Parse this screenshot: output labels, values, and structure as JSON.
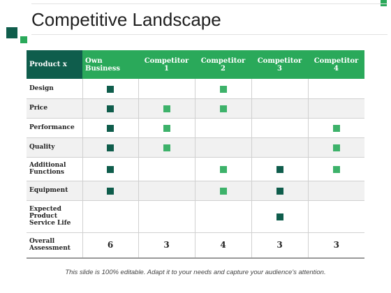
{
  "slide": {
    "title": "Competitive Landscape",
    "footer": "This slide is 100% editable. Adapt it to your needs and capture your audience's attention."
  },
  "colors": {
    "dark_green": "#0f5d4c",
    "light_green": "#2aa95a",
    "row_shade": "#f1f1f1"
  },
  "table": {
    "headers": [
      "Product x",
      "Own Business",
      "Competitor 1",
      "Competitor 2",
      "Competitor 3",
      "Competitor 4"
    ],
    "rows": [
      {
        "label": "Design",
        "marks": [
          "dark",
          "",
          "light",
          "",
          ""
        ]
      },
      {
        "label": "Price",
        "marks": [
          "dark",
          "light",
          "light",
          "",
          ""
        ]
      },
      {
        "label": "Performance",
        "marks": [
          "dark",
          "light",
          "",
          "",
          "light"
        ]
      },
      {
        "label": "Quality",
        "marks": [
          "dark",
          "light",
          "",
          "",
          "light"
        ]
      },
      {
        "label": "Additional Functions",
        "marks": [
          "dark",
          "",
          "light",
          "dark",
          "light"
        ]
      },
      {
        "label": "Equipment",
        "marks": [
          "dark",
          "",
          "light",
          "dark",
          ""
        ]
      },
      {
        "label": "Expected Product Service Life",
        "marks": [
          "",
          "",
          "",
          "dark",
          ""
        ]
      }
    ],
    "total": {
      "label": "Overall Assessment",
      "values": [
        "6",
        "3",
        "4",
        "3",
        "3"
      ]
    }
  }
}
